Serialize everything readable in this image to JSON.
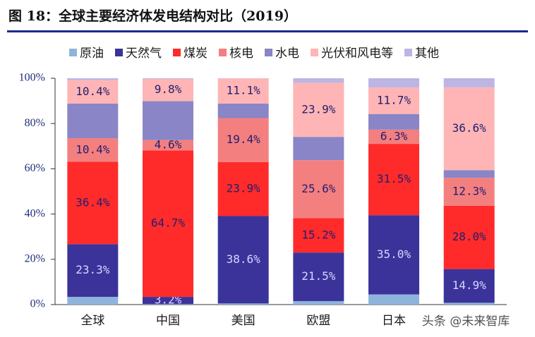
{
  "chart_data": {
    "type": "stacked_bar",
    "title": "图 18：全球主要经济体发电结构对比（2019）",
    "categories": [
      "全球",
      "中国",
      "美国",
      "欧盟",
      "日本",
      null
    ],
    "series": [
      {
        "name": "原油",
        "color": "#8fb4dc",
        "values": [
          3.4,
          0.2,
          0.5,
          1.5,
          4.5,
          0.8
        ],
        "value_labels": [
          null,
          null,
          null,
          null,
          null,
          null
        ]
      },
      {
        "name": "天然气",
        "color": "#3b3399",
        "values": [
          23.3,
          3.2,
          38.6,
          21.5,
          35.0,
          14.9
        ],
        "value_labels": [
          "23.3%",
          "3.2%",
          "38.6%",
          "21.5%",
          "35.0%",
          "14.9%"
        ]
      },
      {
        "name": "煤炭",
        "color": "#ff2b2b",
        "values": [
          36.4,
          64.7,
          23.9,
          15.2,
          31.5,
          28.0
        ],
        "value_labels": [
          "36.4%",
          "64.7%",
          "23.9%",
          "15.2%",
          "31.5%",
          "28.0%"
        ]
      },
      {
        "name": "核电",
        "color": "#f47f7f",
        "values": [
          10.4,
          4.6,
          19.4,
          25.6,
          6.3,
          12.3
        ],
        "value_labels": [
          "10.4%",
          "4.6%",
          "19.4%",
          "25.6%",
          "6.3%",
          "12.3%"
        ]
      },
      {
        "name": "水电",
        "color": "#8a85c6",
        "values": [
          15.3,
          17.2,
          6.4,
          10.3,
          6.9,
          3.4
        ],
        "value_labels": [
          null,
          null,
          null,
          null,
          null,
          null
        ]
      },
      {
        "name": "光伏和风电等",
        "color": "#ffb5b5",
        "values": [
          10.4,
          9.8,
          11.1,
          23.9,
          11.7,
          36.6
        ],
        "value_labels": [
          "10.4%",
          "9.8%",
          "11.1%",
          "23.9%",
          "11.7%",
          "36.6%"
        ]
      },
      {
        "name": "其他",
        "color": "#bdb5e3",
        "values": [
          0.8,
          0.3,
          0.1,
          2.0,
          4.1,
          4.0
        ],
        "value_labels": [
          null,
          null,
          null,
          null,
          null,
          null
        ]
      }
    ],
    "ylim": [
      0,
      100
    ],
    "yticks": [
      {
        "value": 0,
        "label": "0%"
      },
      {
        "value": 20,
        "label": "20%"
      },
      {
        "value": 40,
        "label": "40%"
      },
      {
        "value": 60,
        "label": "60%"
      },
      {
        "value": 80,
        "label": "80%"
      },
      {
        "value": 100,
        "label": "100%"
      }
    ],
    "legend": "top",
    "watermark": "头条 @未来智库"
  }
}
